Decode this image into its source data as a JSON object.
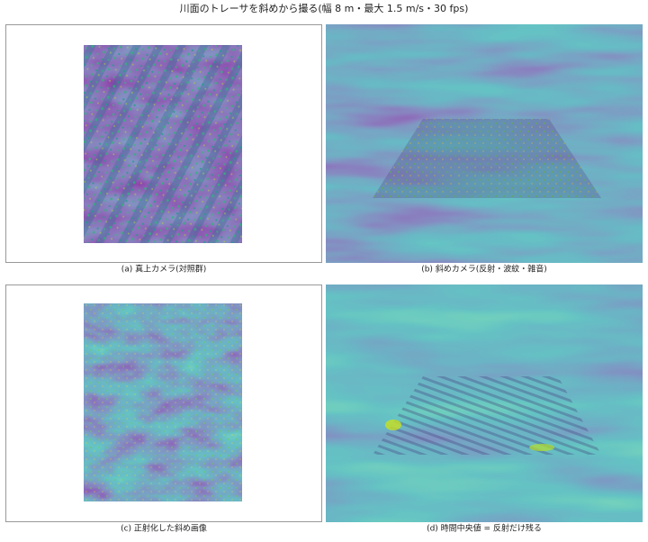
{
  "title": "川面のトレーサを斜めから撮る(幅 8 m・最大 1.5 m/s・30 fps)",
  "panels": [
    {
      "caption": "(a) 真上カメラ(対照群)"
    },
    {
      "caption": "(b) 斜めカメラ(反射・波紋・雑音)"
    },
    {
      "caption": "(c) 正射化した斜め画像"
    },
    {
      "caption": "(d) 時間中央値 = 反射だけ残る"
    }
  ]
}
